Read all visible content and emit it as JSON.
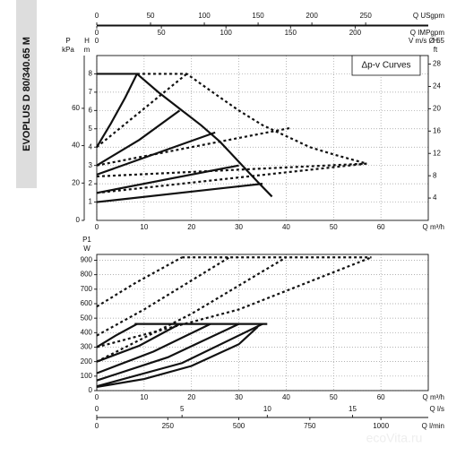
{
  "product": "EVOPLUS D 80/340.65 M",
  "watermark": "ecoVita.ru",
  "chart_data": [
    {
      "type": "line",
      "annotation": "Δp-v Curves",
      "xlim": [
        0,
        70
      ],
      "xticks": [
        0,
        10,
        20,
        30,
        40,
        50,
        60
      ],
      "x_title": "Q m³/h",
      "x2lim": [
        0,
        308.2
      ],
      "x2ticks": [
        0,
        50,
        100,
        150,
        200,
        250
      ],
      "x2_title": "Q USgpm",
      "x3lim": [
        0,
        256.6
      ],
      "x3ticks": [
        0,
        50,
        100,
        150,
        200
      ],
      "x3_title": "Q IMPgpm",
      "x4lim": [
        0,
        5.86
      ],
      "x4ticks": [
        0
      ],
      "x4_title": "V m/s Ø 65",
      "ylim": [
        0,
        9
      ],
      "yticks": [
        1,
        2,
        3,
        4,
        5,
        6,
        7,
        8
      ],
      "y_title": [
        "H",
        "m"
      ],
      "kpa_lim": [
        0,
        88.26
      ],
      "kpa_ticks": [
        0,
        20,
        40,
        60
      ],
      "kpa_title": [
        "P",
        "kPa"
      ],
      "y2lim": [
        0,
        29.53
      ],
      "y2ticks": [
        4,
        8,
        12,
        16,
        20,
        24,
        28
      ],
      "y2_title": [
        "H",
        "ft"
      ],
      "grid": true,
      "series": [
        {
          "style": "solid",
          "color": "#111",
          "x": [
            0,
            8.5,
            13,
            18,
            22,
            26,
            30,
            34,
            37
          ],
          "values": [
            8,
            8,
            7,
            6,
            5.2,
            4.3,
            3.2,
            2.1,
            1.3
          ]
        },
        {
          "style": "solid",
          "color": "#111",
          "x": [
            0,
            3,
            6,
            8.5
          ],
          "values": [
            4,
            5.3,
            6.7,
            8
          ]
        },
        {
          "style": "solid",
          "color": "#111",
          "x": [
            0,
            9,
            17.5
          ],
          "values": [
            3,
            4.4,
            6
          ]
        },
        {
          "style": "solid",
          "color": "#111",
          "x": [
            0,
            25
          ],
          "values": [
            2.5,
            4.8
          ]
        },
        {
          "style": "solid",
          "color": "#111",
          "x": [
            0,
            30
          ],
          "values": [
            1.5,
            3
          ]
        },
        {
          "style": "solid",
          "color": "#111",
          "x": [
            0,
            35
          ],
          "values": [
            1,
            2
          ]
        },
        {
          "style": "dashed",
          "color": "#111",
          "x": [
            8.5,
            19,
            25,
            30,
            35,
            40,
            45,
            50,
            57
          ],
          "values": [
            8,
            8,
            6.9,
            6,
            5.2,
            4.6,
            4,
            3.6,
            3.1
          ]
        },
        {
          "style": "dashed",
          "color": "#111",
          "x": [
            0,
            19
          ],
          "values": [
            4,
            8
          ]
        },
        {
          "style": "dashed",
          "color": "#111",
          "x": [
            0,
            41
          ],
          "values": [
            3,
            5.05
          ]
        },
        {
          "style": "dashed",
          "color": "#111",
          "x": [
            0,
            57
          ],
          "values": [
            2.4,
            3.1
          ]
        },
        {
          "style": "dashed",
          "color": "#111",
          "x": [
            0,
            57
          ],
          "values": [
            1.5,
            3.1
          ]
        }
      ]
    },
    {
      "type": "line",
      "xlim": [
        0,
        70
      ],
      "xticks": [
        0,
        10,
        20,
        30,
        40,
        50,
        60
      ],
      "x_title": "Q m³/h",
      "x2lim": [
        0,
        19.44
      ],
      "x2ticks": [
        0,
        5,
        10,
        15
      ],
      "x2_title": "Q l/s",
      "x3lim": [
        0,
        1166.7
      ],
      "x3ticks": [
        0,
        250,
        500,
        750,
        1000
      ],
      "x3_title": "Q l/min",
      "ylim": [
        0,
        940
      ],
      "yticks": [
        0,
        100,
        200,
        300,
        400,
        500,
        600,
        700,
        800,
        900
      ],
      "y_title": [
        "P1",
        "W"
      ],
      "grid": true,
      "series": [
        {
          "style": "solid",
          "color": "#111",
          "x": [
            8,
            36
          ],
          "values": [
            460,
            460
          ]
        },
        {
          "style": "solid",
          "color": "#111",
          "x": [
            0,
            4,
            8.5
          ],
          "values": [
            300,
            380,
            460
          ]
        },
        {
          "style": "solid",
          "color": "#111",
          "x": [
            0,
            9,
            17.5
          ],
          "values": [
            200,
            310,
            460
          ]
        },
        {
          "style": "solid",
          "color": "#111",
          "x": [
            0,
            12,
            24
          ],
          "values": [
            120,
            270,
            460
          ]
        },
        {
          "style": "solid",
          "color": "#111",
          "x": [
            0,
            15,
            30
          ],
          "values": [
            70,
            230,
            460
          ]
        },
        {
          "style": "solid",
          "color": "#111",
          "x": [
            0,
            18,
            35
          ],
          "values": [
            30,
            190,
            460
          ]
        },
        {
          "style": "solid",
          "color": "#111",
          "x": [
            0,
            10,
            20,
            30,
            34
          ],
          "values": [
            25,
            80,
            170,
            320,
            440
          ]
        },
        {
          "style": "dashed",
          "color": "#111",
          "x": [
            18,
            58
          ],
          "values": [
            920,
            920
          ]
        },
        {
          "style": "dashed",
          "color": "#111",
          "x": [
            0,
            8,
            18
          ],
          "values": [
            580,
            740,
            920
          ]
        },
        {
          "style": "dashed",
          "color": "#111",
          "x": [
            0,
            10,
            20,
            28
          ],
          "values": [
            380,
            560,
            760,
            920
          ]
        },
        {
          "style": "dashed",
          "color": "#111",
          "x": [
            0,
            20,
            40
          ],
          "values": [
            200,
            530,
            920
          ]
        },
        {
          "style": "dashed",
          "color": "#111",
          "x": [
            0,
            30,
            58
          ],
          "values": [
            300,
            560,
            920
          ]
        }
      ]
    }
  ]
}
